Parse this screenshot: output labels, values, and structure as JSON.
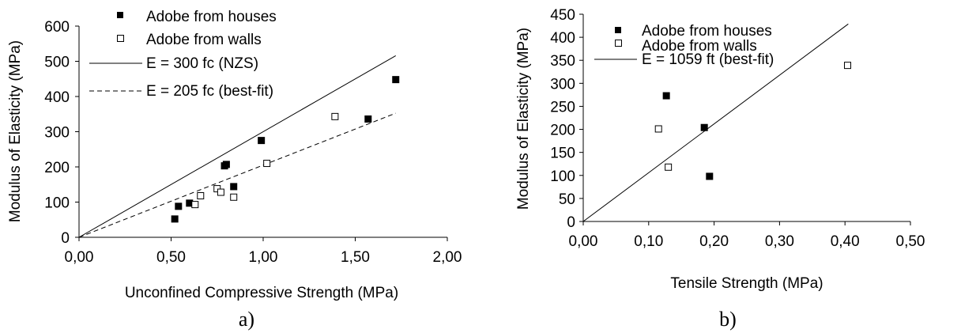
{
  "chart_data": [
    {
      "type": "scatter",
      "caption": "a)",
      "xlabel": "Unconfined Compressive Strength (MPa)",
      "ylabel": "Modulus of Elasticity (MPa)",
      "xlim": [
        0,
        2
      ],
      "ylim": [
        0,
        600
      ],
      "xticks": [
        "0,00",
        "0,50",
        "1,00",
        "1,50",
        "2,00"
      ],
      "yticks": [
        "0",
        "100",
        "200",
        "300",
        "400",
        "500",
        "600"
      ],
      "grid": false,
      "legend_position": "top-left",
      "series": [
        {
          "name": "Adobe from houses",
          "marker": "filled-square",
          "points": [
            [
              0.52,
              52
            ],
            [
              0.54,
              88
            ],
            [
              0.6,
              97
            ],
            [
              0.79,
              203
            ],
            [
              0.8,
              207
            ],
            [
              0.84,
              144
            ],
            [
              0.99,
              275
            ],
            [
              1.57,
              336
            ],
            [
              1.72,
              448
            ]
          ]
        },
        {
          "name": "Adobe from walls",
          "marker": "open-square",
          "points": [
            [
              0.63,
              93
            ],
            [
              0.66,
              118
            ],
            [
              0.75,
              138
            ],
            [
              0.77,
              128
            ],
            [
              0.84,
              114
            ],
            [
              1.02,
              210
            ],
            [
              1.39,
              343
            ]
          ]
        }
      ],
      "lines": [
        {
          "name": "E = 300 fc (NZS)",
          "style": "solid",
          "slope": 300,
          "x_range": [
            0,
            1.72
          ]
        },
        {
          "name": "E = 205 fc (best-fit)",
          "style": "dashed",
          "slope": 205,
          "x_range": [
            0,
            1.72
          ]
        }
      ]
    },
    {
      "type": "scatter",
      "caption": "b)",
      "xlabel": "Tensile Strength (MPa)",
      "ylabel": "Modulus of Elasticity (MPa)",
      "xlim": [
        0,
        0.5
      ],
      "ylim": [
        0,
        450
      ],
      "xticks": [
        "0,00",
        "0,10",
        "0,20",
        "0,30",
        "0,40",
        "0,50"
      ],
      "yticks": [
        "0",
        "50",
        "100",
        "150",
        "200",
        "250",
        "300",
        "350",
        "400",
        "450"
      ],
      "grid": false,
      "legend_position": "top-left",
      "series": [
        {
          "name": "Adobe from houses",
          "marker": "filled-square",
          "points": [
            [
              0.127,
              273
            ],
            [
              0.185,
              204
            ],
            [
              0.193,
              98
            ]
          ]
        },
        {
          "name": "Adobe from walls",
          "marker": "open-square",
          "points": [
            [
              0.115,
              201
            ],
            [
              0.13,
              118
            ],
            [
              0.404,
              339
            ]
          ]
        }
      ],
      "lines": [
        {
          "name": "E = 1059 ft (best-fit)",
          "style": "solid",
          "slope": 1059,
          "x_range": [
            0,
            0.405
          ]
        }
      ]
    }
  ]
}
